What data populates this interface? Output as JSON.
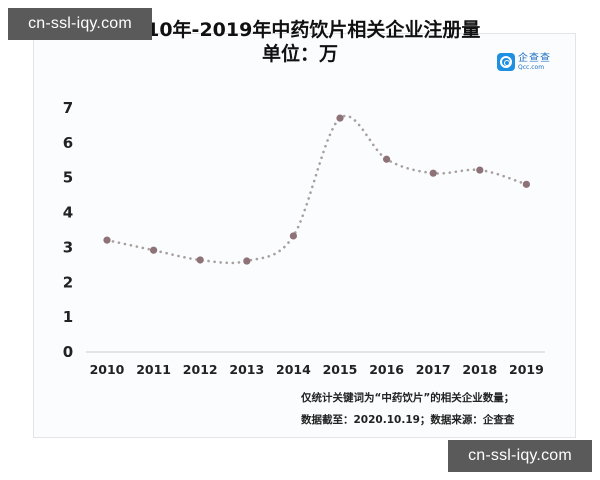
{
  "watermarks": {
    "top": "cn-ssl-iqy.com",
    "bottom": "cn-ssl-iqy.com"
  },
  "header": {
    "title_line1": "2010年-2019年中药饮片相关企业注册量",
    "title_line2": "单位：万"
  },
  "logo": {
    "icon": "qcc-logo-icon",
    "name_cn": "企查查",
    "name_en": "Qcc.com",
    "color": "#1e8fe1"
  },
  "notes": {
    "line1": "仅统计关键词为“中药饮片”的相关企业数量；",
    "line2": "数据截至：2020.10.19；数据来源：企查查"
  },
  "chart_data": {
    "type": "line",
    "title": "2010年-2019年中药饮片相关企业注册量",
    "subtitle": "单位：万",
    "xlabel": "",
    "ylabel": "",
    "categories": [
      "2010",
      "2011",
      "2012",
      "2013",
      "2014",
      "2015",
      "2016",
      "2017",
      "2018",
      "2019"
    ],
    "series": [
      {
        "name": "中药饮片相关企业注册量（万）",
        "values": [
          3.21,
          2.92,
          2.64,
          2.61,
          3.33,
          6.71,
          5.53,
          5.13,
          5.22,
          4.81
        ]
      }
    ],
    "yticks": [
      "0",
      "1",
      "2",
      "3",
      "4",
      "5",
      "6",
      "7"
    ],
    "ylim": [
      0,
      7
    ],
    "grid": false,
    "legend": "none",
    "line_style": "dotted",
    "line_color": "#a89f9f",
    "marker_color": "#8d7277",
    "annotations": [
      "仅统计关键词为“中药饮片”的相关企业数量；",
      "数据截至：2020.10.19；数据来源：企查查"
    ]
  }
}
